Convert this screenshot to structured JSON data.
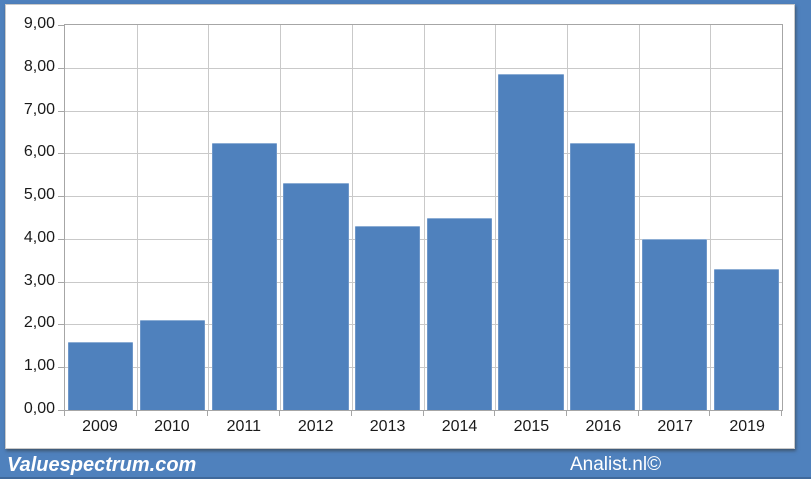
{
  "chart_data": {
    "type": "bar",
    "title": "",
    "xlabel": "",
    "ylabel": "",
    "categories": [
      "2009",
      "2010",
      "2011",
      "2012",
      "2013",
      "2014",
      "2015",
      "2016",
      "2017",
      "2019"
    ],
    "values": [
      1.6,
      2.1,
      6.25,
      5.3,
      4.3,
      4.5,
      7.85,
      6.25,
      4.0,
      3.3
    ],
    "ylim": [
      0,
      9
    ],
    "ytick_labels": [
      "0,00",
      "1,00",
      "2,00",
      "3,00",
      "4,00",
      "5,00",
      "6,00",
      "7,00",
      "8,00",
      "9,00"
    ],
    "grid": true,
    "legend": "none"
  },
  "footer": {
    "left_brand": "Valuespectrum.com",
    "right_brand": "Analist.nl©"
  },
  "colors": {
    "background": "#4f81bd",
    "bar": "#4f81bd",
    "gridline": "#c9c9c9",
    "axis": "#a6a6a6",
    "plot_background": "#ffffff",
    "label_text": "#1a1a1a",
    "footer_text": "#ffffff"
  }
}
